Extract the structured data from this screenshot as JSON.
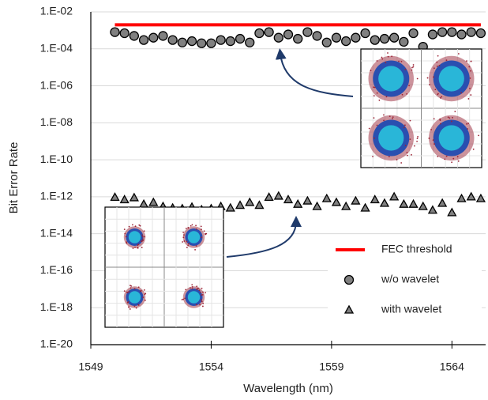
{
  "chart_data": {
    "type": "scatter",
    "log_y": true,
    "grid": true,
    "legend_position": "lower right",
    "xlabel": "Wavelength (nm)",
    "ylabel": "Bit Error Rate",
    "xlim": [
      1549,
      1565.4
    ],
    "xticks": [
      1549,
      1554,
      1559,
      1564
    ],
    "ylim": [
      1e-20,
      0.01
    ],
    "yticks": [
      {
        "value": 1e-20,
        "label": "1.E-20"
      },
      {
        "value": 1e-18,
        "label": "1.E-18"
      },
      {
        "value": 1e-16,
        "label": "1.E-16"
      },
      {
        "value": 1e-14,
        "label": "1.E-14"
      },
      {
        "value": 1e-12,
        "label": "1.E-12"
      },
      {
        "value": 1e-10,
        "label": "1.E-10"
      },
      {
        "value": 1e-08,
        "label": "1.E-08"
      },
      {
        "value": 1e-06,
        "label": "1.E-06"
      },
      {
        "value": 0.0001,
        "label": "1.E-04"
      },
      {
        "value": 0.01,
        "label": "1.E-02"
      }
    ],
    "x": [
      1550,
      1550.4,
      1550.8,
      1551.2,
      1551.6,
      1552,
      1552.4,
      1552.8,
      1553.2,
      1553.6,
      1554,
      1554.4,
      1554.8,
      1555.2,
      1555.6,
      1556,
      1556.4,
      1556.8,
      1557.2,
      1557.6,
      1558,
      1558.4,
      1558.8,
      1559.2,
      1559.6,
      1560,
      1560.4,
      1560.8,
      1561.2,
      1561.6,
      1562,
      1562.4,
      1562.8,
      1563.2,
      1563.6,
      1564,
      1564.4,
      1564.8,
      1565.2
    ],
    "series": [
      {
        "name": "FEC threshold",
        "color": "#ff0000",
        "marker": "line",
        "values": [
          0.002,
          0.002,
          0.002,
          0.002,
          0.002,
          0.002,
          0.002,
          0.002,
          0.002,
          0.002,
          0.002,
          0.002,
          0.002,
          0.002,
          0.002,
          0.002,
          0.002,
          0.002,
          0.002,
          0.002,
          0.002,
          0.002,
          0.002,
          0.002,
          0.002,
          0.002,
          0.002,
          0.002,
          0.002,
          0.002,
          0.002,
          0.002,
          0.002,
          0.002,
          0.002,
          0.002,
          0.002,
          0.002,
          0.002
        ]
      },
      {
        "name": "w/o wavelet",
        "color": "#808080",
        "marker": "circle",
        "values": [
          0.0008,
          0.0007,
          0.0005,
          0.0003,
          0.0004,
          0.0005,
          0.0003,
          0.00022,
          0.00026,
          0.0002,
          0.0002,
          0.0003,
          0.00026,
          0.00035,
          0.00022,
          0.0007,
          0.0008,
          0.0004,
          0.0006,
          0.00035,
          0.0008,
          0.0005,
          0.00022,
          0.0004,
          0.00026,
          0.0004,
          0.0007,
          0.0003,
          0.00035,
          0.0004,
          0.00024,
          0.0007,
          0.00013,
          0.0006,
          0.0008,
          0.0008,
          0.0006,
          0.0008,
          0.0007
        ]
      },
      {
        "name": "with wavelet",
        "color": "#808080",
        "marker": "triangle",
        "values": [
          9.5e-13,
          7e-13,
          9e-13,
          4e-13,
          5e-13,
          3e-13,
          2.5e-13,
          2.3e-13,
          2.8e-13,
          2e-13,
          2.3e-13,
          3e-13,
          2.5e-13,
          3.5e-13,
          5e-13,
          3.5e-13,
          9.5e-13,
          1.1e-12,
          7e-13,
          4e-13,
          6e-13,
          3e-13,
          8e-13,
          5e-13,
          3e-13,
          6e-13,
          2.5e-13,
          7e-13,
          4.5e-13,
          1e-12,
          4e-13,
          4e-13,
          3e-13,
          1.9e-13,
          4.5e-13,
          1.4e-13,
          8e-13,
          1e-12,
          8e-13
        ]
      }
    ]
  }
}
